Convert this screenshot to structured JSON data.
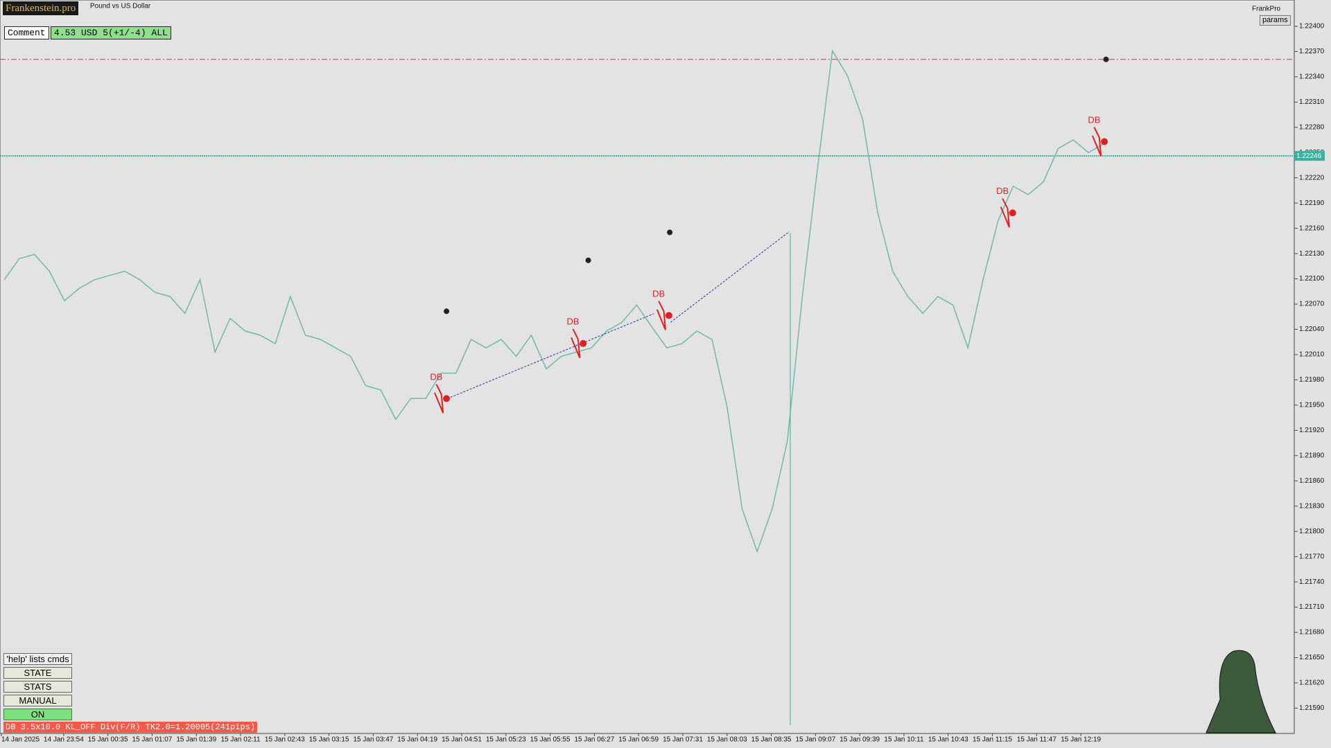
{
  "header": {
    "logo": "Frankenstein.pro",
    "symbol_title": "Pound vs US Dollar",
    "brand": "FrankPro",
    "params_button": "params"
  },
  "comment": {
    "label": "Comment",
    "value": "4.53 USD 5(+1/-4) ALL"
  },
  "price_axis": {
    "ticks": [
      {
        "value": 1.224,
        "label": "1.22400"
      },
      {
        "value": 1.2237,
        "label": "1.22370"
      },
      {
        "value": 1.2234,
        "label": "1.22340"
      },
      {
        "value": 1.2231,
        "label": "1.22310"
      },
      {
        "value": 1.2228,
        "label": "1.22280"
      },
      {
        "value": 1.2225,
        "label": "1.22250"
      },
      {
        "value": 1.2222,
        "label": "1.22220"
      },
      {
        "value": 1.2219,
        "label": "1.22190"
      },
      {
        "value": 1.2216,
        "label": "1.22160"
      },
      {
        "value": 1.2213,
        "label": "1.22130"
      },
      {
        "value": 1.221,
        "label": "1.22100"
      },
      {
        "value": 1.2207,
        "label": "1.22070"
      },
      {
        "value": 1.2204,
        "label": "1.22040"
      },
      {
        "value": 1.2201,
        "label": "1.22010"
      },
      {
        "value": 1.2198,
        "label": "1.21980"
      },
      {
        "value": 1.2195,
        "label": "1.21950"
      },
      {
        "value": 1.2192,
        "label": "1.21920"
      },
      {
        "value": 1.2189,
        "label": "1.21890"
      },
      {
        "value": 1.2186,
        "label": "1.21860"
      },
      {
        "value": 1.2183,
        "label": "1.21830"
      },
      {
        "value": 1.218,
        "label": "1.21800"
      },
      {
        "value": 1.2177,
        "label": "1.21770"
      },
      {
        "value": 1.2174,
        "label": "1.21740"
      },
      {
        "value": 1.2171,
        "label": "1.21710"
      },
      {
        "value": 1.2168,
        "label": "1.21680"
      },
      {
        "value": 1.2165,
        "label": "1.21650"
      },
      {
        "value": 1.2162,
        "label": "1.21620"
      },
      {
        "value": 1.2159,
        "label": "1.21590"
      }
    ],
    "current_price": {
      "value": 1.22246,
      "label": "1.22246"
    }
  },
  "time_axis": {
    "labels": [
      "14 Jan 2025",
      "14 Jan 23:54",
      "15 Jan 00:35",
      "15 Jan 01:07",
      "15 Jan 01:39",
      "15 Jan 02:11",
      "15 Jan 02:43",
      "15 Jan 03:15",
      "15 Jan 03:47",
      "15 Jan 04:19",
      "15 Jan 04:51",
      "15 Jan 05:23",
      "15 Jan 05:55",
      "15 Jan 06:27",
      "15 Jan 06:59",
      "15 Jan 07:31",
      "15 Jan 08:03",
      "15 Jan 08:35",
      "15 Jan 09:07",
      "15 Jan 09:39",
      "15 Jan 10:11",
      "15 Jan 10:43",
      "15 Jan 11:15",
      "15 Jan 11:47",
      "15 Jan 12:19"
    ]
  },
  "price_trace": [
    1.22099,
    1.22124,
    1.22129,
    1.22109,
    1.22074,
    1.22089,
    1.22099,
    1.22104,
    1.22109,
    1.22099,
    1.22084,
    1.22079,
    1.22059,
    1.22099,
    1.22013,
    1.22053,
    1.22038,
    1.22033,
    1.22023,
    1.22079,
    1.22033,
    1.22028,
    1.22018,
    1.22008,
    1.21973,
    1.21968,
    1.21933,
    1.21958,
    1.21958,
    1.21988,
    1.21988,
    1.22028,
    1.22018,
    1.22028,
    1.22008,
    1.22033,
    1.21993,
    1.22008,
    1.22013,
    1.22018,
    1.22038,
    1.22048,
    1.22069,
    1.22043,
    1.22018,
    1.22023,
    1.22038,
    1.22028,
    1.21948,
    1.21827,
    1.21776,
    1.21827,
    1.21907,
    1.22079,
    1.2223,
    1.22371,
    1.22341,
    1.2229,
    1.22179,
    1.22109,
    1.22079,
    1.22059,
    1.22079,
    1.22069,
    1.22018,
    1.22099,
    1.22169,
    1.2221,
    1.222,
    1.22215,
    1.22255,
    1.22265,
    1.2225,
    1.2226
  ],
  "annotations": [
    "DB",
    "DB",
    "DB",
    "DB",
    "DB"
  ],
  "buttons": {
    "help": "'help' lists cmds",
    "items": [
      "STATE",
      "STATS",
      "MANUAL",
      "ON"
    ]
  },
  "status": {
    "tag": "DB",
    "text": "3.5x10.0 KL_OFF Div(F/R) TK2.0=1.20005(241pips)"
  }
}
